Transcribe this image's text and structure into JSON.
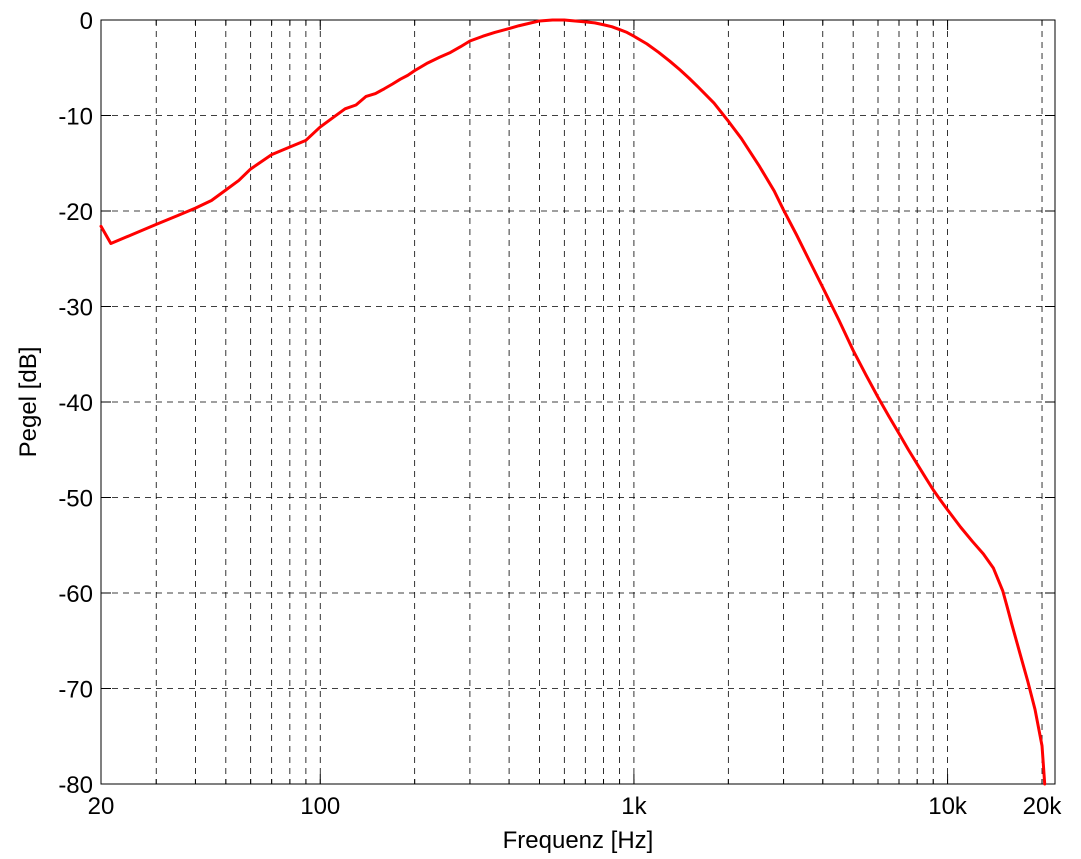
{
  "chart_data": {
    "type": "line",
    "title": "",
    "xlabel": "Frequenz [Hz]",
    "ylabel": "Pegel [dB]",
    "xscale": "log",
    "xlim": [
      20,
      22000
    ],
    "ylim": [
      -80,
      0
    ],
    "grid": true,
    "grid_style": "dashed",
    "x_major_ticks": [
      100,
      1000,
      10000
    ],
    "x_tick_labels": [
      {
        "value": 20,
        "label": "20"
      },
      {
        "value": 100,
        "label": "100"
      },
      {
        "value": 1000,
        "label": "1k"
      },
      {
        "value": 10000,
        "label": "10k"
      },
      {
        "value": 20000,
        "label": "20k"
      }
    ],
    "y_ticks": [
      0,
      -10,
      -20,
      -30,
      -40,
      -50,
      -60,
      -70,
      -80
    ],
    "y_tick_labels": [
      "0",
      "-10",
      "-20",
      "-30",
      "-40",
      "-50",
      "-60",
      "-70",
      "-80"
    ],
    "series": [
      {
        "color": "#ff0000",
        "x": [
          20,
          21.5,
          25,
          30,
          35,
          40,
          45,
          50,
          55,
          60,
          70,
          80,
          90,
          100,
          110,
          120,
          130,
          140,
          150,
          160,
          170,
          180,
          190,
          200,
          220,
          240,
          260,
          280,
          300,
          330,
          360,
          400,
          430,
          470,
          500,
          550,
          600,
          650,
          700,
          750,
          800,
          850,
          900,
          950,
          1000,
          1100,
          1200,
          1300,
          1400,
          1500,
          1600,
          1800,
          2000,
          2200,
          2500,
          2800,
          3000,
          3300,
          3600,
          4000,
          4500,
          5000,
          5500,
          6000,
          6500,
          7000,
          7500,
          8000,
          8500,
          9000,
          9500,
          10000,
          11000,
          12000,
          13000,
          14000,
          15000,
          15500,
          16000,
          17000,
          18000,
          19000,
          20000,
          20200,
          20400
        ],
        "y": [
          -21.6,
          -23.4,
          -22.5,
          -21.4,
          -20.5,
          -19.7,
          -18.9,
          -17.8,
          -16.8,
          -15.6,
          -14.1,
          -13.3,
          -12.6,
          -11.2,
          -10.2,
          -9.3,
          -8.9,
          -8.0,
          -7.7,
          -7.2,
          -6.7,
          -6.2,
          -5.8,
          -5.3,
          -4.5,
          -3.9,
          -3.4,
          -2.8,
          -2.2,
          -1.7,
          -1.3,
          -0.9,
          -0.6,
          -0.3,
          -0.1,
          0.0,
          0.0,
          -0.1,
          -0.2,
          -0.3,
          -0.5,
          -0.7,
          -1.0,
          -1.3,
          -1.7,
          -2.5,
          -3.4,
          -4.3,
          -5.2,
          -6.1,
          -7.0,
          -8.7,
          -10.6,
          -12.4,
          -15.2,
          -17.9,
          -19.9,
          -22.5,
          -25.0,
          -28.0,
          -31.4,
          -34.6,
          -37.2,
          -39.5,
          -41.5,
          -43.3,
          -45.0,
          -46.5,
          -47.9,
          -49.2,
          -50.3,
          -51.3,
          -53.1,
          -54.6,
          -55.9,
          -57.4,
          -59.8,
          -61.5,
          -63.2,
          -66.3,
          -69.2,
          -72.2,
          -76.0,
          -78.0,
          -80.0
        ]
      }
    ]
  }
}
